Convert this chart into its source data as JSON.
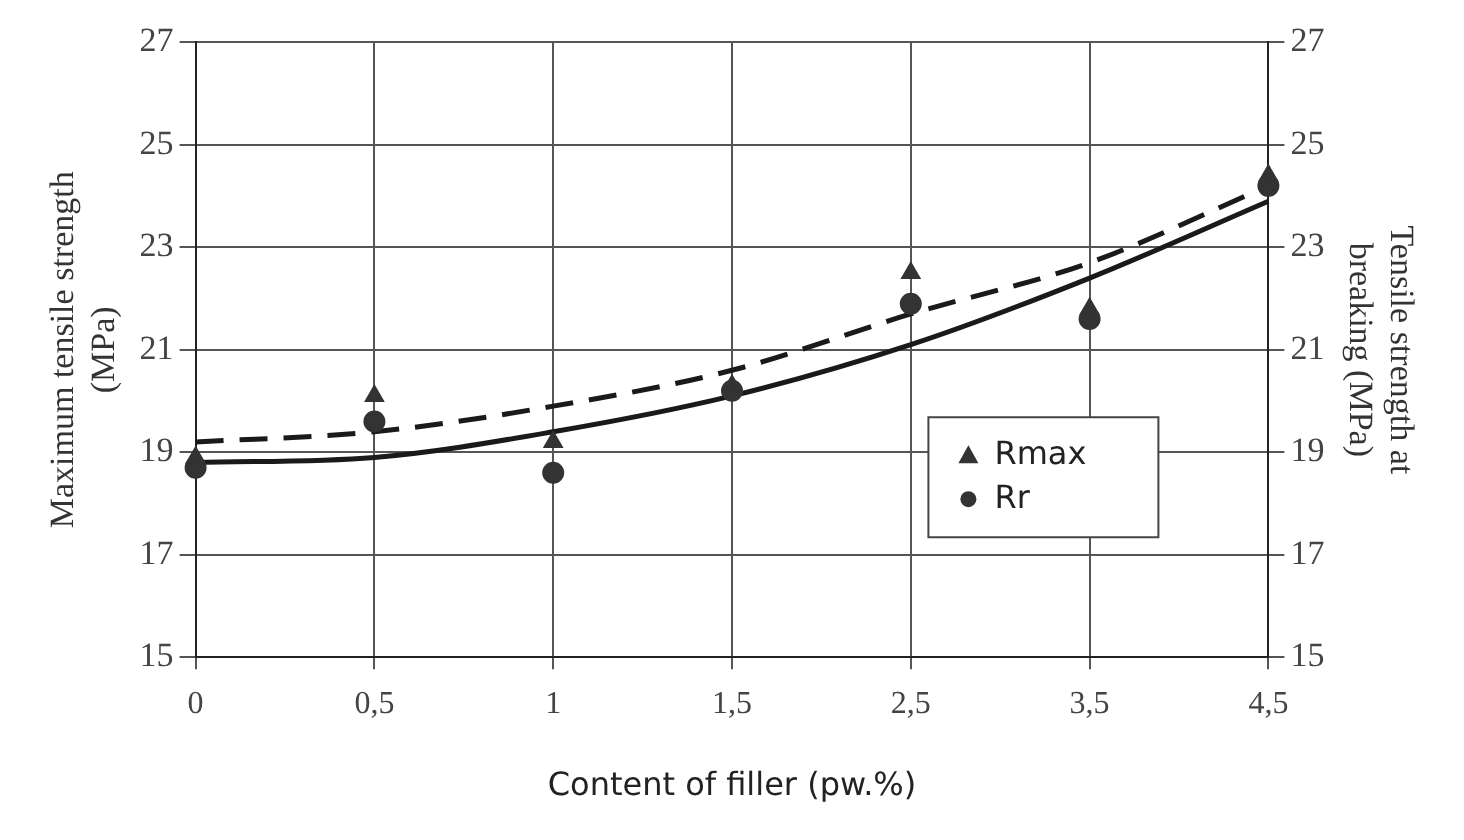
{
  "chart_data": {
    "type": "scatter",
    "xlabel": "Content of filler (pw.%)",
    "ylabel": "Maximum tensile strength\n(MPa)",
    "y2label": "Tensile strength at\nbreaking (MPa)",
    "categories": [
      "0",
      "0,5",
      "1",
      "1,5",
      "2,5",
      "3,5",
      "4,5"
    ],
    "series": [
      {
        "type": "line",
        "color": "#1a1a1a",
        "line_style": "dashed",
        "marker": "none",
        "values": [
          19.2,
          19.4,
          19.9,
          20.6,
          21.7,
          22.7,
          24.2
        ]
      },
      {
        "type": "line",
        "color": "#1a1a1a",
        "line_style": "solid",
        "marker": "none",
        "values": [
          18.8,
          18.9,
          19.4,
          20.1,
          21.1,
          22.4,
          23.9
        ]
      },
      {
        "name": "Rmax",
        "color": "#333333",
        "marker": "triangle",
        "values": [
          18.9,
          20.1,
          19.2,
          20.3,
          22.5,
          21.8,
          24.4
        ]
      },
      {
        "name": "Rr",
        "color": "#333333",
        "marker": "circle",
        "values": [
          18.7,
          19.6,
          18.6,
          20.2,
          21.9,
          21.6,
          24.2
        ]
      }
    ],
    "ylim": [
      15,
      27
    ],
    "yticks": [
      15,
      17,
      19,
      21,
      23,
      25,
      27
    ],
    "y2lim": [
      15,
      27
    ],
    "y2ticks": [
      15,
      17,
      19,
      21,
      23,
      25,
      27
    ],
    "grid": true,
    "legend": "bottom right"
  }
}
